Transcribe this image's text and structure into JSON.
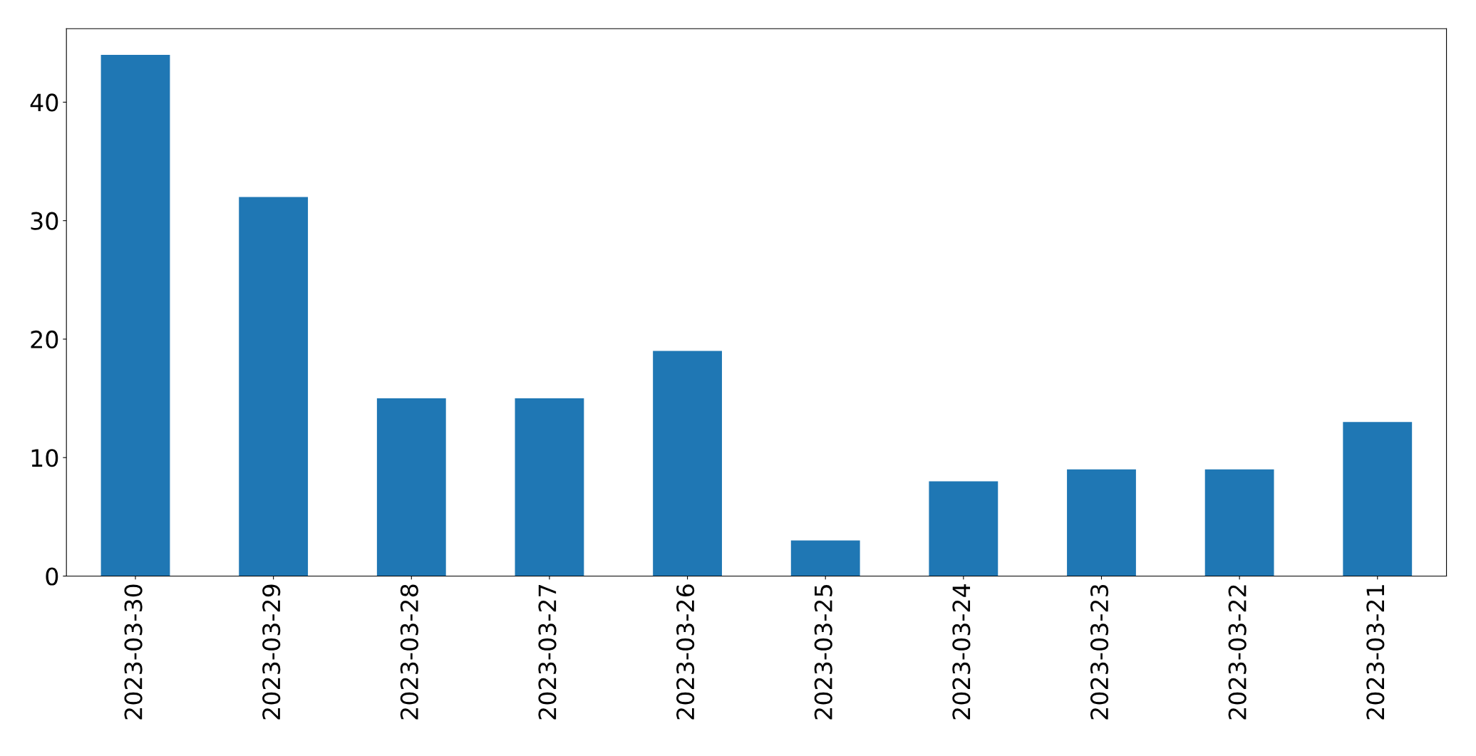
{
  "chart_data": {
    "type": "bar",
    "categories": [
      "2023-03-30",
      "2023-03-29",
      "2023-03-28",
      "2023-03-27",
      "2023-03-26",
      "2023-03-25",
      "2023-03-24",
      "2023-03-23",
      "2023-03-22",
      "2023-03-21"
    ],
    "values": [
      44,
      32,
      15,
      15,
      19,
      3,
      8,
      9,
      9,
      13
    ],
    "color": "#1f77b4",
    "ylim": [
      0,
      46.2
    ],
    "yticks": [
      0,
      10,
      20,
      30,
      40
    ],
    "grid": false
  }
}
